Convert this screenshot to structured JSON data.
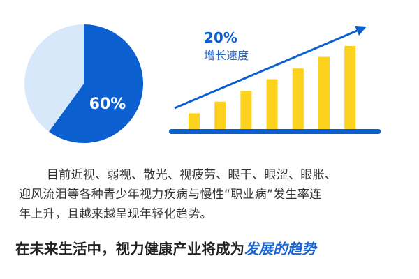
{
  "chart_data": [
    {
      "type": "pie",
      "values": [
        60,
        40
      ],
      "data_label": "60%",
      "colors": [
        "#0b5fcf",
        "#d7e8fa"
      ]
    },
    {
      "type": "bar",
      "values": [
        0.19,
        0.33,
        0.46,
        0.6,
        0.73,
        0.87,
        1.0
      ],
      "bar_color": "#fcd21e",
      "baseline_color": "#0b5fcf",
      "trend_arrow_color": "#0b5fcf",
      "annotation_value": "20%",
      "annotation_label": "增长速度"
    }
  ],
  "paragraph": {
    "lines": [
      "目前近视、弱视、散光、视疲劳、眼干、眼涩、眼胀、",
      "迎风流泪等各种青少年视力疾病与慢性“职业病”发生率连",
      "年上升，且越来越呈现年轻化趋势。"
    ]
  },
  "conclusion": {
    "text": "在未来生活中，视力健康产业将成为",
    "highlight": "发展的趋势"
  }
}
